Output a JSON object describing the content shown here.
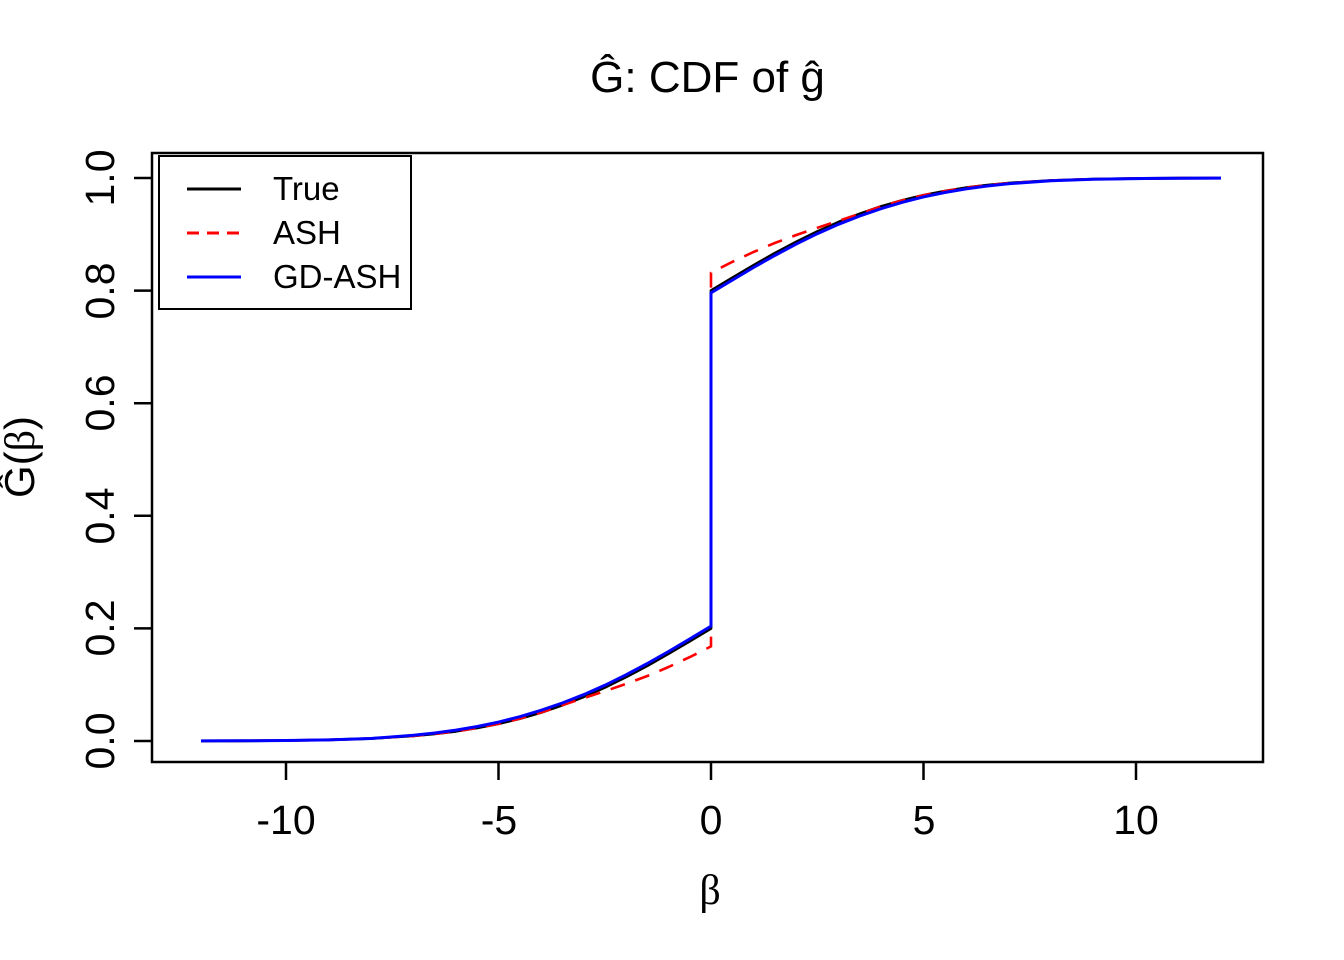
{
  "title": "Ĝ: CDF of ĝ",
  "y_axis_label_parts": {
    "prefix": "Ĝ(",
    "symbol": "β",
    "suffix": ")"
  },
  "chart_data": {
    "type": "line",
    "title": "Ĝ: CDF of ĝ",
    "xlabel": "β",
    "ylabel": "Ĝ(β)",
    "xlim": [
      -12,
      12
    ],
    "ylim": [
      0,
      1
    ],
    "grid": false,
    "legend_position": "top-left",
    "x_ticks": [
      -10,
      -5,
      0,
      5,
      10
    ],
    "x_tick_labels": [
      "-10",
      "-5",
      "0",
      "5",
      "10"
    ],
    "y_ticks": [
      0,
      0.2,
      0.4,
      0.6,
      0.8,
      1.0
    ],
    "y_tick_labels": [
      "0.0",
      "0.2",
      "0.4",
      "0.6",
      "0.8",
      "1.0"
    ],
    "description": "CDF of estimated prior g: mixture with point mass at 0 (jump from 0.2 to 0.8) plus smooth symmetric tails over [-12,12]",
    "series": [
      {
        "name": "True",
        "color": "#000000",
        "style": "solid",
        "points": [
          [
            -12,
            0.0001
          ],
          [
            -11,
            0.0003
          ],
          [
            -10,
            0.0009
          ],
          [
            -9,
            0.002
          ],
          [
            -8,
            0.0044
          ],
          [
            -7,
            0.0091
          ],
          [
            -6.5,
            0.0127
          ],
          [
            -6,
            0.0173
          ],
          [
            -5.5,
            0.0232
          ],
          [
            -5,
            0.0306
          ],
          [
            -4.5,
            0.0397
          ],
          [
            -4,
            0.0506
          ],
          [
            -3.5,
            0.0635
          ],
          [
            -3,
            0.0783
          ],
          [
            -2.5,
            0.095
          ],
          [
            -2,
            0.1136
          ],
          [
            -1.5,
            0.1336
          ],
          [
            -1,
            0.155
          ],
          [
            -0.5,
            0.1773
          ],
          [
            0,
            0.2
          ],
          [
            0,
            0.8
          ],
          [
            0.5,
            0.8227
          ],
          [
            1,
            0.845
          ],
          [
            1.5,
            0.8664
          ],
          [
            2,
            0.8864
          ],
          [
            2.5,
            0.905
          ],
          [
            3,
            0.9217
          ],
          [
            3.5,
            0.9365
          ],
          [
            4,
            0.9494
          ],
          [
            4.5,
            0.9603
          ],
          [
            5,
            0.9694
          ],
          [
            5.5,
            0.9768
          ],
          [
            6,
            0.9827
          ],
          [
            6.5,
            0.9873
          ],
          [
            7,
            0.9909
          ],
          [
            8,
            0.9956
          ],
          [
            9,
            0.998
          ],
          [
            10,
            0.9991
          ],
          [
            11,
            0.9997
          ],
          [
            12,
            0.9999
          ]
        ]
      },
      {
        "name": "ASH",
        "color": "#FF0000",
        "style": "dashed",
        "points": [
          [
            -12,
            0.0001
          ],
          [
            -11,
            0.0003
          ],
          [
            -10,
            0.0009
          ],
          [
            -9,
            0.002
          ],
          [
            -8,
            0.0044
          ],
          [
            -7,
            0.0091
          ],
          [
            -6.5,
            0.0127
          ],
          [
            -6,
            0.0173
          ],
          [
            -5.5,
            0.0232
          ],
          [
            -5,
            0.0306
          ],
          [
            -4.5,
            0.0397
          ],
          [
            -4,
            0.0506
          ],
          [
            -3.5,
            0.0635
          ],
          [
            -3,
            0.076
          ],
          [
            -2.5,
            0.0885
          ],
          [
            -2,
            0.1015
          ],
          [
            -1.5,
            0.1155
          ],
          [
            -1,
            0.1315
          ],
          [
            -0.5,
            0.149
          ],
          [
            0,
            0.168
          ],
          [
            0,
            0.832
          ],
          [
            0.5,
            0.851
          ],
          [
            1,
            0.8685
          ],
          [
            1.5,
            0.8845
          ],
          [
            2,
            0.8985
          ],
          [
            2.5,
            0.9115
          ],
          [
            3,
            0.924
          ],
          [
            3.5,
            0.9365
          ],
          [
            4,
            0.9494
          ],
          [
            4.5,
            0.9603
          ],
          [
            5,
            0.9694
          ],
          [
            5.5,
            0.9768
          ],
          [
            6,
            0.9827
          ],
          [
            6.5,
            0.9873
          ],
          [
            7,
            0.9909
          ],
          [
            8,
            0.9956
          ],
          [
            9,
            0.998
          ],
          [
            10,
            0.9991
          ],
          [
            11,
            0.9997
          ],
          [
            12,
            0.9999
          ]
        ]
      },
      {
        "name": "GD-ASH",
        "color": "#0000FF",
        "style": "solid",
        "points": [
          [
            -12,
            0.0001
          ],
          [
            -11,
            0.0003
          ],
          [
            -10,
            0.0009
          ],
          [
            -9,
            0.002
          ],
          [
            -8,
            0.0044
          ],
          [
            -7,
            0.0101
          ],
          [
            -6.5,
            0.0142
          ],
          [
            -6,
            0.0193
          ],
          [
            -5.5,
            0.0257
          ],
          [
            -5,
            0.0336
          ],
          [
            -4.5,
            0.0432
          ],
          [
            -4,
            0.0546
          ],
          [
            -3.5,
            0.0675
          ],
          [
            -3,
            0.0823
          ],
          [
            -2.5,
            0.099
          ],
          [
            -2,
            0.1176
          ],
          [
            -1.5,
            0.1376
          ],
          [
            -1,
            0.159
          ],
          [
            -0.5,
            0.1813
          ],
          [
            0,
            0.204
          ],
          [
            0,
            0.796
          ],
          [
            0.5,
            0.8187
          ],
          [
            1,
            0.841
          ],
          [
            1.5,
            0.8624
          ],
          [
            2,
            0.8824
          ],
          [
            2.5,
            0.901
          ],
          [
            3,
            0.9177
          ],
          [
            3.5,
            0.9325
          ],
          [
            4,
            0.9454
          ],
          [
            4.5,
            0.9568
          ],
          [
            5,
            0.9664
          ],
          [
            5.5,
            0.9743
          ],
          [
            6,
            0.9807
          ],
          [
            6.5,
            0.9858
          ],
          [
            7,
            0.9899
          ],
          [
            8,
            0.9951
          ],
          [
            9,
            0.9978
          ],
          [
            10,
            0.999
          ],
          [
            11,
            0.9996
          ],
          [
            12,
            0.9998
          ]
        ]
      }
    ]
  }
}
